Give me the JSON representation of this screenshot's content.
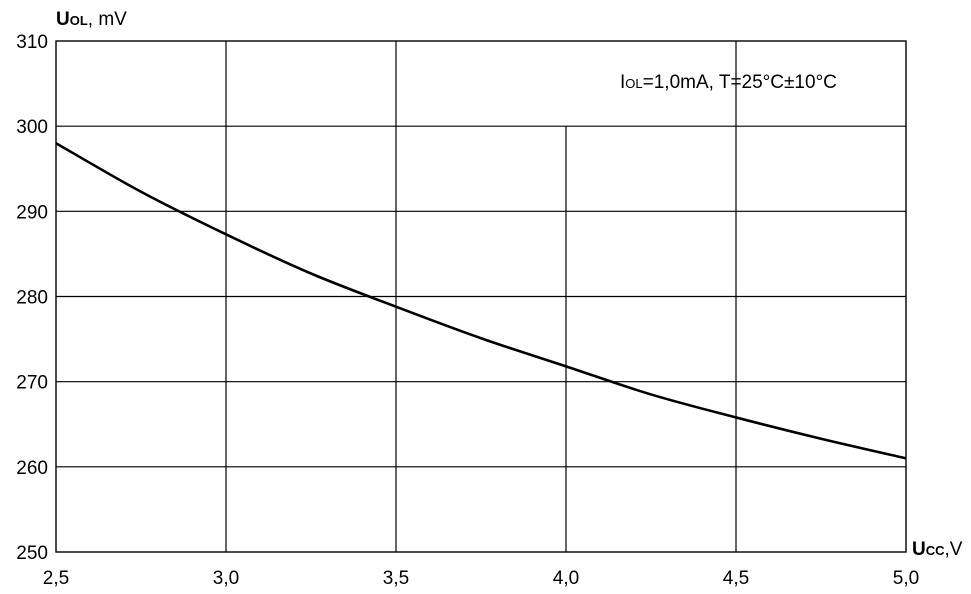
{
  "chart_data": {
    "type": "line",
    "ylabel": {
      "main": "U",
      "sub": "OL",
      "unit": ", mV"
    },
    "xlabel": {
      "main": "U",
      "sub": "CC",
      "unit": ",V"
    },
    "annotation": {
      "prefix": "I",
      "sub": "OL",
      "rest": "=1,0mA, T=25°C±10°C"
    },
    "xlim": [
      2.5,
      5.0
    ],
    "ylim": [
      250,
      310
    ],
    "x_ticks": [
      2.5,
      3.0,
      3.5,
      4.0,
      4.5,
      5.0
    ],
    "x_tick_labels": [
      "2,5",
      "3,0",
      "3,5",
      "4,0",
      "4,5",
      "5,0"
    ],
    "y_ticks": [
      250,
      260,
      270,
      280,
      290,
      300,
      310
    ],
    "y_tick_labels": [
      "250",
      "260",
      "270",
      "280",
      "290",
      "300",
      "310"
    ],
    "grid": true,
    "series": [
      {
        "x": [
          2.5,
          2.75,
          3.0,
          3.25,
          3.5,
          3.75,
          4.0,
          4.25,
          4.5,
          4.75,
          5.0
        ],
        "y": [
          298,
          292.3,
          287.3,
          282.7,
          278.8,
          275.1,
          271.8,
          268.5,
          265.8,
          263.3,
          261.0
        ]
      }
    ]
  }
}
